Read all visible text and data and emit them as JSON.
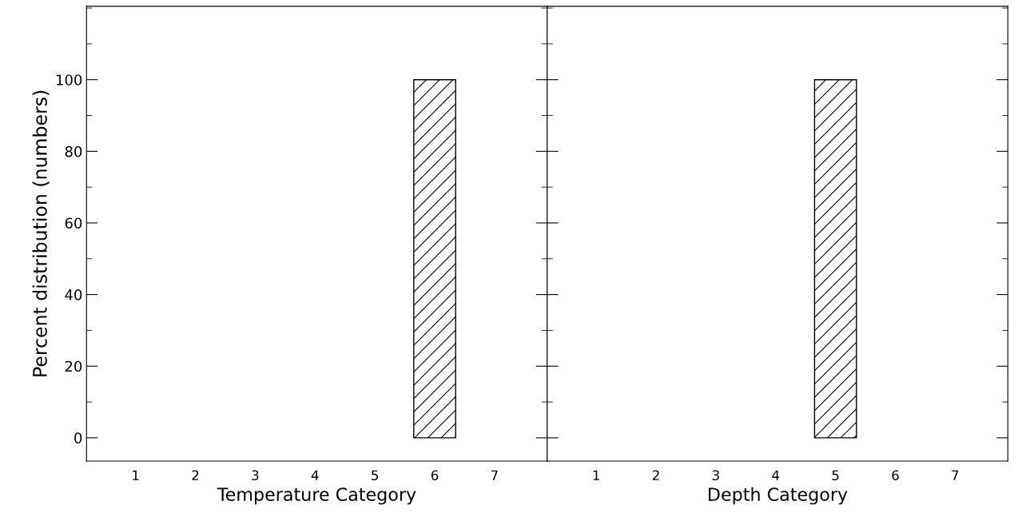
{
  "chart_data": [
    {
      "type": "bar",
      "xlabel": "Temperature Category",
      "ylabel": "Percent distribution (numbers)",
      "categories": [
        "1",
        "2",
        "3",
        "4",
        "5",
        "6",
        "7"
      ],
      "values": [
        null,
        null,
        null,
        null,
        null,
        100,
        null
      ],
      "color": "#000000",
      "ylim": [
        -6.5,
        120.5
      ],
      "yticks": [
        0,
        20,
        40,
        60,
        80,
        100
      ],
      "grid": false
    },
    {
      "type": "bar",
      "xlabel": "Depth Category",
      "categories": [
        "1",
        "2",
        "3",
        "4",
        "5",
        "6",
        "7"
      ],
      "values": [
        null,
        null,
        null,
        null,
        100,
        null,
        null
      ],
      "color": "#000000",
      "ylim": [
        -6.5,
        120.5
      ],
      "yticks": [
        0,
        20,
        40,
        60,
        80,
        100
      ],
      "tick_labels": "x",
      "grid": false
    }
  ]
}
